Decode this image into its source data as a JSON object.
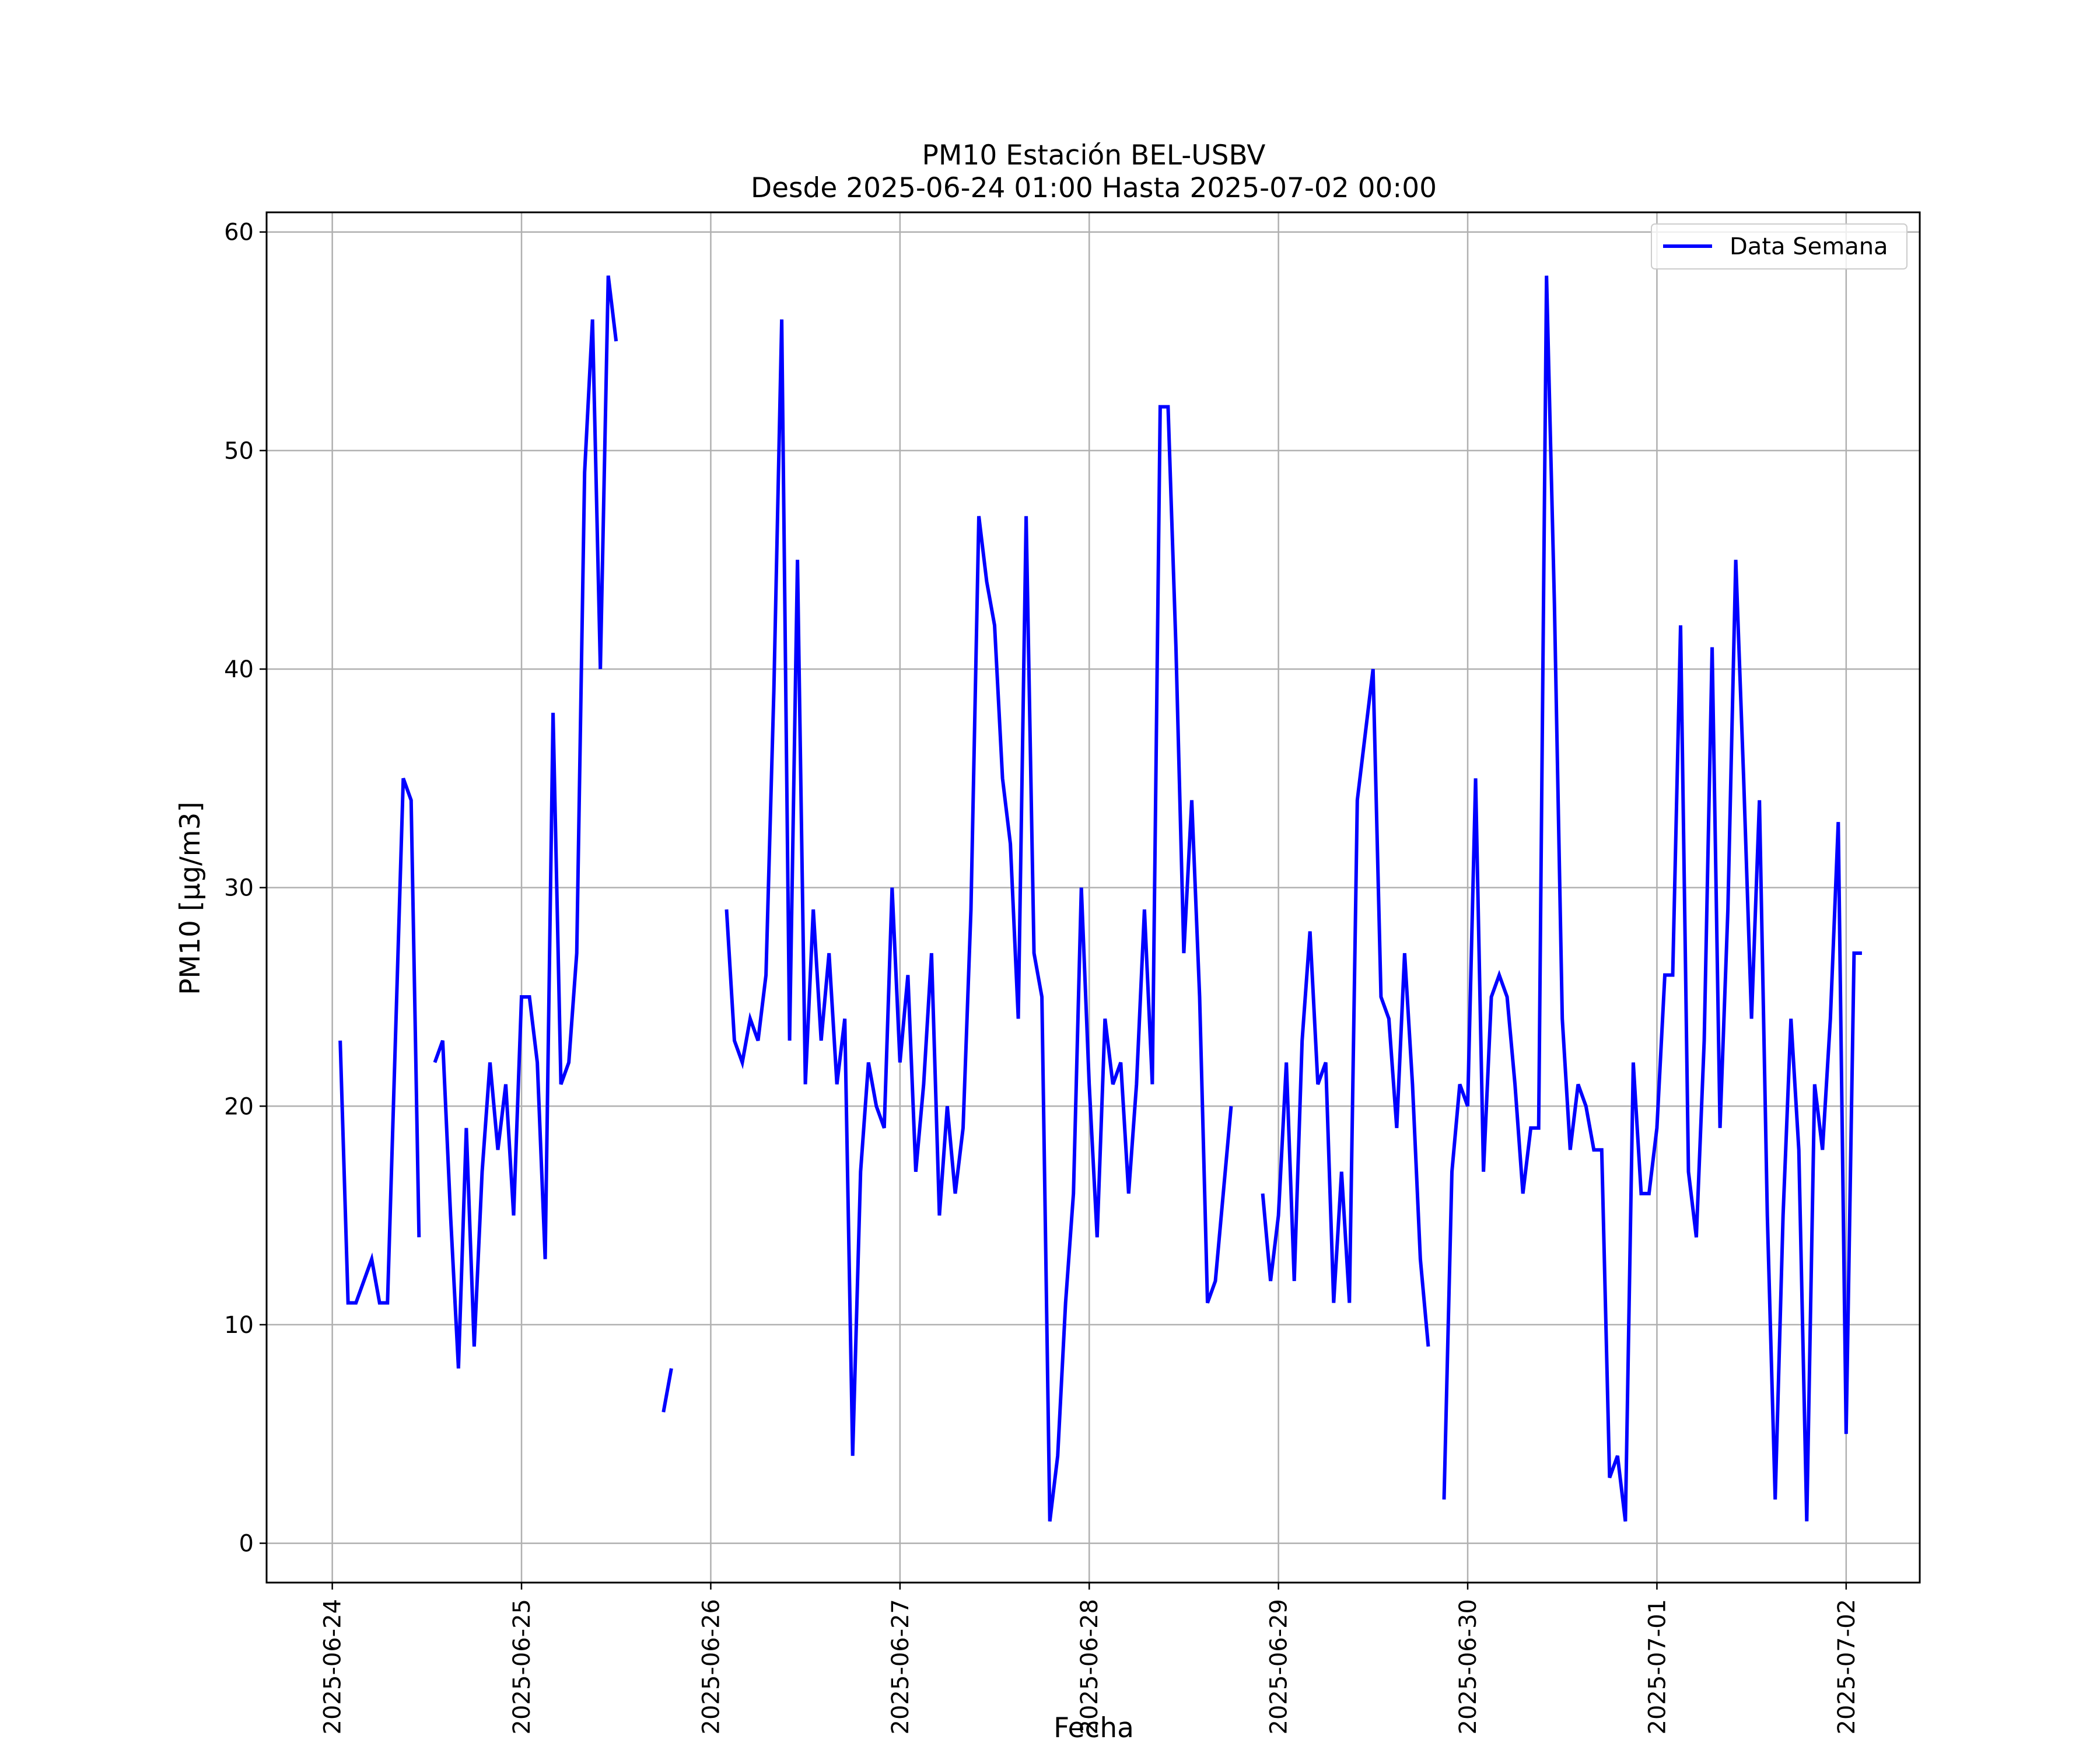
{
  "chart_data": {
    "type": "line",
    "title": "PM10 Estación BEL-USBV",
    "subtitle": "Desde 2025-06-24 01:00 Hasta 2025-07-02 00:00",
    "xlabel": "Fecha",
    "ylabel": "PM10 [μg/m3]",
    "ylim": [
      -1.8,
      60.9
    ],
    "xlim": [
      "2025-06-23 15:40",
      "2025-07-02 09:20"
    ],
    "x_ticks": [
      "2025-06-24",
      "2025-06-25",
      "2025-06-26",
      "2025-06-27",
      "2025-06-28",
      "2025-06-29",
      "2025-06-30",
      "2025-07-01",
      "2025-07-02"
    ],
    "y_ticks": [
      0,
      10,
      20,
      30,
      40,
      50,
      60
    ],
    "grid": true,
    "legend_position": "top-right",
    "colors": {
      "series": "#0000ff",
      "grid": "#b0b0b0",
      "axes": "#000000"
    },
    "series": [
      {
        "name": "Data Semana",
        "start": "2025-06-24 01:00",
        "step_hours": 1,
        "values": [
          23,
          11,
          11,
          12,
          13,
          11,
          11,
          23,
          35,
          34,
          14,
          null,
          22,
          23,
          15,
          8,
          19,
          9,
          17,
          22,
          18,
          21,
          15,
          25,
          25,
          22,
          13,
          38,
          21,
          22,
          27,
          49,
          56,
          40,
          58,
          55,
          null,
          null,
          null,
          null,
          null,
          6,
          8,
          null,
          null,
          null,
          null,
          null,
          null,
          29,
          23,
          22,
          24,
          23,
          26,
          39,
          56,
          23,
          45,
          21,
          29,
          23,
          27,
          21,
          24,
          4,
          17,
          22,
          20,
          19,
          30,
          22,
          26,
          17,
          21,
          27,
          15,
          20,
          16,
          19,
          29,
          47,
          44,
          42,
          35,
          32,
          24,
          47,
          27,
          25,
          1,
          4,
          11,
          16,
          30,
          21,
          14,
          24,
          21,
          22,
          16,
          21,
          29,
          21,
          52,
          52,
          41,
          27,
          34,
          25,
          11,
          12,
          16,
          20,
          null,
          null,
          null,
          16,
          12,
          15,
          22,
          12,
          23,
          28,
          21,
          22,
          11,
          17,
          11,
          34,
          37,
          40,
          25,
          24,
          19,
          27,
          21,
          13,
          9,
          null,
          2,
          17,
          21,
          20,
          35,
          17,
          25,
          26,
          25,
          21,
          16,
          19,
          19,
          58,
          43,
          24,
          18,
          21,
          20,
          18,
          18,
          3,
          4,
          1,
          22,
          16,
          16,
          19,
          26,
          26,
          42,
          17,
          14,
          23,
          41,
          19,
          29,
          45,
          35,
          24,
          34,
          15,
          2,
          15,
          24,
          18,
          1,
          21,
          18,
          24,
          33,
          5,
          27,
          27
        ]
      }
    ]
  }
}
